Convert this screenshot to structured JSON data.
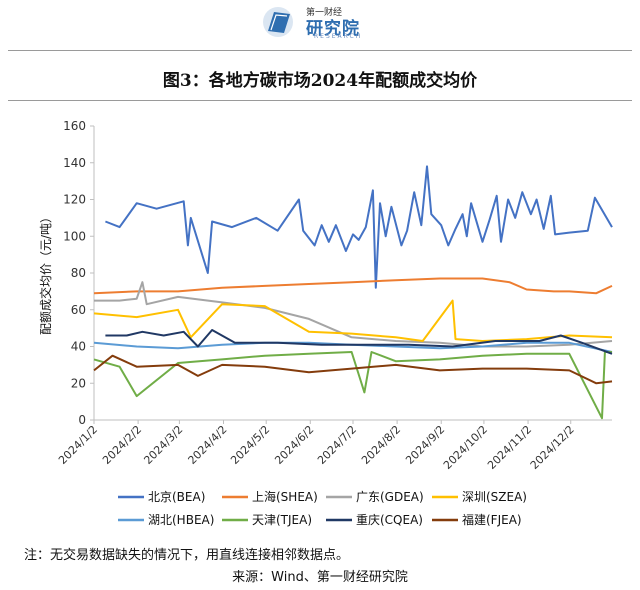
{
  "header": {
    "logo_small": "第一财经",
    "logo_main": "研究院",
    "logo_sub": "RESEARCH"
  },
  "title": "图3：各地方碳市场2024年配额成交均价",
  "note": "注：无交易数据缺失的情况下，用直线连接相邻数据点。",
  "source": "来源：Wind、第一财经研究院",
  "chart_data": {
    "type": "line",
    "title": "图3：各地方碳市场2024年配额成交均价",
    "ylabel": "配额成交均价（元/吨）",
    "xlabel": "",
    "ylim": [
      0,
      160
    ],
    "yticks": [
      0,
      20,
      40,
      60,
      80,
      100,
      120,
      140,
      160
    ],
    "xlim": [
      "2024/1/2",
      "2024/12/31"
    ],
    "xticks": [
      "2024/1/2",
      "2024/2/2",
      "2024/3/2",
      "2024/4/2",
      "2024/5/2",
      "2024/6/2",
      "2024/7/2",
      "2024/8/2",
      "2024/9/2",
      "2024/10/2",
      "2024/11/2",
      "2024/12/2"
    ],
    "grid": false,
    "legend_position": "bottom",
    "series": [
      {
        "name": "北京(BEA)",
        "color": "#4472c4",
        "points": [
          [
            "2024-01-10",
            108
          ],
          [
            "2024-01-20",
            105
          ],
          [
            "2024-02-01",
            118
          ],
          [
            "2024-02-15",
            115
          ],
          [
            "2024-03-05",
            119
          ],
          [
            "2024-03-08",
            95
          ],
          [
            "2024-03-10",
            110
          ],
          [
            "2024-03-22",
            80
          ],
          [
            "2024-03-25",
            108
          ],
          [
            "2024-04-08",
            105
          ],
          [
            "2024-04-25",
            110
          ],
          [
            "2024-05-10",
            103
          ],
          [
            "2024-05-25",
            120
          ],
          [
            "2024-05-28",
            103
          ],
          [
            "2024-06-05",
            95
          ],
          [
            "2024-06-10",
            106
          ],
          [
            "2024-06-15",
            97
          ],
          [
            "2024-06-20",
            106
          ],
          [
            "2024-06-27",
            92
          ],
          [
            "2024-07-02",
            101
          ],
          [
            "2024-07-06",
            98
          ],
          [
            "2024-07-11",
            105
          ],
          [
            "2024-07-16",
            125
          ],
          [
            "2024-07-18",
            72
          ],
          [
            "2024-07-21",
            118
          ],
          [
            "2024-07-25",
            100
          ],
          [
            "2024-07-29",
            116
          ],
          [
            "2024-08-05",
            95
          ],
          [
            "2024-08-09",
            103
          ],
          [
            "2024-08-14",
            124
          ],
          [
            "2024-08-19",
            106
          ],
          [
            "2024-08-23",
            138
          ],
          [
            "2024-08-26",
            112
          ],
          [
            "2024-09-02",
            106
          ],
          [
            "2024-09-07",
            95
          ],
          [
            "2024-09-12",
            104
          ],
          [
            "2024-09-17",
            112
          ],
          [
            "2024-09-20",
            100
          ],
          [
            "2024-09-23",
            118
          ],
          [
            "2024-10-01",
            97
          ],
          [
            "2024-10-06",
            109
          ],
          [
            "2024-10-11",
            122
          ],
          [
            "2024-10-14",
            97
          ],
          [
            "2024-10-19",
            120
          ],
          [
            "2024-10-24",
            110
          ],
          [
            "2024-10-29",
            124
          ],
          [
            "2024-11-04",
            112
          ],
          [
            "2024-11-08",
            120
          ],
          [
            "2024-11-13",
            104
          ],
          [
            "2024-11-18",
            122
          ],
          [
            "2024-11-21",
            101
          ],
          [
            "2024-12-01",
            102
          ],
          [
            "2024-12-14",
            103
          ],
          [
            "2024-12-19",
            121
          ],
          [
            "2024-12-31",
            105
          ]
        ]
      },
      {
        "name": "上海(SHEA)",
        "color": "#ed7d31",
        "points": [
          [
            "2024-01-02",
            69
          ],
          [
            "2024-02-01",
            70
          ],
          [
            "2024-03-01",
            70
          ],
          [
            "2024-04-01",
            72
          ],
          [
            "2024-05-01",
            73
          ],
          [
            "2024-06-01",
            74
          ],
          [
            "2024-07-01",
            75
          ],
          [
            "2024-08-01",
            76
          ],
          [
            "2024-09-01",
            77
          ],
          [
            "2024-10-01",
            77
          ],
          [
            "2024-10-20",
            75
          ],
          [
            "2024-11-01",
            71
          ],
          [
            "2024-11-20",
            70
          ],
          [
            "2024-12-01",
            70
          ],
          [
            "2024-12-20",
            69
          ],
          [
            "2024-12-31",
            73
          ]
        ]
      },
      {
        "name": "广东(GDEA)",
        "color": "#a5a5a5",
        "points": [
          [
            "2024-01-02",
            65
          ],
          [
            "2024-01-20",
            65
          ],
          [
            "2024-02-01",
            66
          ],
          [
            "2024-02-05",
            75
          ],
          [
            "2024-02-08",
            63
          ],
          [
            "2024-03-01",
            67
          ],
          [
            "2024-04-01",
            64
          ],
          [
            "2024-05-01",
            61
          ],
          [
            "2024-06-01",
            55
          ],
          [
            "2024-07-01",
            45
          ],
          [
            "2024-08-01",
            43
          ],
          [
            "2024-09-01",
            42
          ],
          [
            "2024-10-01",
            40
          ],
          [
            "2024-11-01",
            40
          ],
          [
            "2024-12-01",
            41
          ],
          [
            "2024-12-31",
            43
          ]
        ]
      },
      {
        "name": "深圳(SZEA)",
        "color": "#ffc000",
        "points": [
          [
            "2024-01-02",
            58
          ],
          [
            "2024-02-01",
            56
          ],
          [
            "2024-03-01",
            60
          ],
          [
            "2024-03-10",
            45
          ],
          [
            "2024-04-01",
            63
          ],
          [
            "2024-05-01",
            62
          ],
          [
            "2024-06-01",
            48
          ],
          [
            "2024-07-01",
            47
          ],
          [
            "2024-08-01",
            45
          ],
          [
            "2024-08-20",
            43
          ],
          [
            "2024-09-10",
            65
          ],
          [
            "2024-09-12",
            44
          ],
          [
            "2024-10-01",
            43
          ],
          [
            "2024-11-01",
            44
          ],
          [
            "2024-12-01",
            46
          ],
          [
            "2024-12-31",
            45
          ]
        ]
      },
      {
        "name": "湖北(HBEA)",
        "color": "#5b9bd5",
        "points": [
          [
            "2024-01-02",
            42
          ],
          [
            "2024-02-01",
            40
          ],
          [
            "2024-03-01",
            39
          ],
          [
            "2024-04-01",
            41
          ],
          [
            "2024-05-01",
            42
          ],
          [
            "2024-06-01",
            42
          ],
          [
            "2024-07-01",
            41
          ],
          [
            "2024-08-01",
            40
          ],
          [
            "2024-09-01",
            39
          ],
          [
            "2024-10-01",
            40
          ],
          [
            "2024-11-01",
            42
          ],
          [
            "2024-12-01",
            42
          ],
          [
            "2024-12-31",
            37
          ]
        ]
      },
      {
        "name": "天津(TJEA)",
        "color": "#70ad47",
        "points": [
          [
            "2024-01-02",
            33
          ],
          [
            "2024-01-20",
            29
          ],
          [
            "2024-02-01",
            13
          ],
          [
            "2024-03-01",
            31
          ],
          [
            "2024-04-01",
            33
          ],
          [
            "2024-05-01",
            35
          ],
          [
            "2024-06-01",
            36
          ],
          [
            "2024-07-01",
            37
          ],
          [
            "2024-07-10",
            15
          ],
          [
            "2024-07-15",
            37
          ],
          [
            "2024-08-01",
            32
          ],
          [
            "2024-09-01",
            33
          ],
          [
            "2024-10-01",
            35
          ],
          [
            "2024-11-01",
            36
          ],
          [
            "2024-12-01",
            36
          ],
          [
            "2024-12-24",
            1
          ],
          [
            "2024-12-26",
            37
          ],
          [
            "2024-12-31",
            37
          ]
        ]
      },
      {
        "name": "重庆(CQEA)",
        "color": "#203864",
        "points": [
          [
            "2024-01-10",
            46
          ],
          [
            "2024-01-25",
            46
          ],
          [
            "2024-02-05",
            48
          ],
          [
            "2024-02-20",
            46
          ],
          [
            "2024-03-05",
            48
          ],
          [
            "2024-03-15",
            40
          ],
          [
            "2024-03-25",
            49
          ],
          [
            "2024-04-10",
            42
          ],
          [
            "2024-05-10",
            42
          ],
          [
            "2024-06-10",
            41
          ],
          [
            "2024-07-10",
            41
          ],
          [
            "2024-08-10",
            41
          ],
          [
            "2024-09-10",
            40
          ],
          [
            "2024-10-10",
            43
          ],
          [
            "2024-11-10",
            43
          ],
          [
            "2024-11-25",
            46
          ],
          [
            "2024-12-10",
            42
          ],
          [
            "2024-12-31",
            36
          ]
        ]
      },
      {
        "name": "福建(FJEA)",
        "color": "#843c0c",
        "points": [
          [
            "2024-01-02",
            27
          ],
          [
            "2024-01-15",
            35
          ],
          [
            "2024-02-01",
            29
          ],
          [
            "2024-03-01",
            30
          ],
          [
            "2024-03-15",
            24
          ],
          [
            "2024-04-01",
            30
          ],
          [
            "2024-05-01",
            29
          ],
          [
            "2024-06-01",
            26
          ],
          [
            "2024-07-01",
            28
          ],
          [
            "2024-08-01",
            30
          ],
          [
            "2024-09-01",
            27
          ],
          [
            "2024-10-01",
            28
          ],
          [
            "2024-11-01",
            28
          ],
          [
            "2024-12-01",
            27
          ],
          [
            "2024-12-20",
            20
          ],
          [
            "2024-12-31",
            21
          ]
        ]
      }
    ]
  }
}
